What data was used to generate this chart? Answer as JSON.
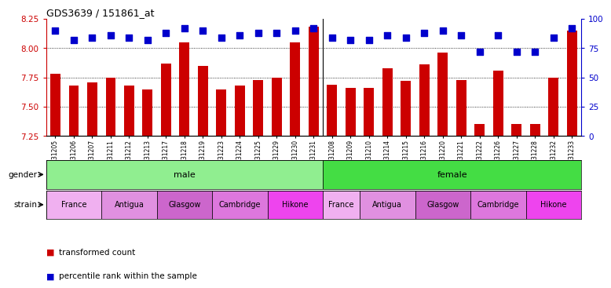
{
  "title": "GDS3639 / 151861_at",
  "samples": [
    "GSM231205",
    "GSM231206",
    "GSM231207",
    "GSM231211",
    "GSM231212",
    "GSM231213",
    "GSM231217",
    "GSM231218",
    "GSM231219",
    "GSM231223",
    "GSM231224",
    "GSM231225",
    "GSM231229",
    "GSM231230",
    "GSM231231",
    "GSM231208",
    "GSM231209",
    "GSM231210",
    "GSM231214",
    "GSM231215",
    "GSM231216",
    "GSM231220",
    "GSM231221",
    "GSM231222",
    "GSM231226",
    "GSM231227",
    "GSM231228",
    "GSM231232",
    "GSM231233"
  ],
  "bar_values": [
    7.78,
    7.68,
    7.71,
    7.75,
    7.68,
    7.65,
    7.87,
    8.05,
    7.85,
    7.65,
    7.68,
    7.73,
    7.75,
    8.05,
    8.18,
    7.69,
    7.66,
    7.66,
    7.83,
    7.72,
    7.86,
    7.96,
    7.73,
    7.35,
    7.81,
    7.35,
    7.35,
    7.75,
    8.15
  ],
  "percentile_values": [
    90,
    82,
    84,
    86,
    84,
    82,
    88,
    92,
    90,
    84,
    86,
    88,
    88,
    90,
    92,
    84,
    82,
    82,
    86,
    84,
    88,
    90,
    86,
    72,
    86,
    72,
    72,
    84,
    92
  ],
  "bar_color": "#cc0000",
  "dot_color": "#0000cc",
  "ylim_left": [
    7.25,
    8.25
  ],
  "ylim_right": [
    0,
    100
  ],
  "yticks_left": [
    7.25,
    7.5,
    7.75,
    8.0,
    8.25
  ],
  "yticks_right": [
    0,
    25,
    50,
    75,
    100
  ],
  "grid_values": [
    7.5,
    7.75,
    8.0
  ],
  "gender_groups": [
    {
      "label": "male",
      "start": 0,
      "end": 15,
      "color": "#90ee90"
    },
    {
      "label": "female",
      "start": 15,
      "end": 29,
      "color": "#44dd44"
    }
  ],
  "strain_groups": [
    {
      "label": "France",
      "start": 0,
      "end": 3,
      "color": "#f0b0f0"
    },
    {
      "label": "Antigua",
      "start": 3,
      "end": 6,
      "color": "#e090e0"
    },
    {
      "label": "Glasgow",
      "start": 6,
      "end": 9,
      "color": "#cc66cc"
    },
    {
      "label": "Cambridge",
      "start": 9,
      "end": 12,
      "color": "#dd77dd"
    },
    {
      "label": "Hikone",
      "start": 12,
      "end": 15,
      "color": "#ee44ee"
    },
    {
      "label": "France",
      "start": 15,
      "end": 17,
      "color": "#f0b0f0"
    },
    {
      "label": "Antigua",
      "start": 17,
      "end": 20,
      "color": "#e090e0"
    },
    {
      "label": "Glasgow",
      "start": 20,
      "end": 23,
      "color": "#cc66cc"
    },
    {
      "label": "Cambridge",
      "start": 23,
      "end": 26,
      "color": "#dd77dd"
    },
    {
      "label": "Hikone",
      "start": 26,
      "end": 29,
      "color": "#ee44ee"
    }
  ],
  "bar_width": 0.55,
  "dot_size": 35,
  "ylabel_left_color": "#cc0000",
  "ylabel_right_color": "#0000cc",
  "background_color": "#ffffff",
  "plot_bg_color": "#ffffff"
}
